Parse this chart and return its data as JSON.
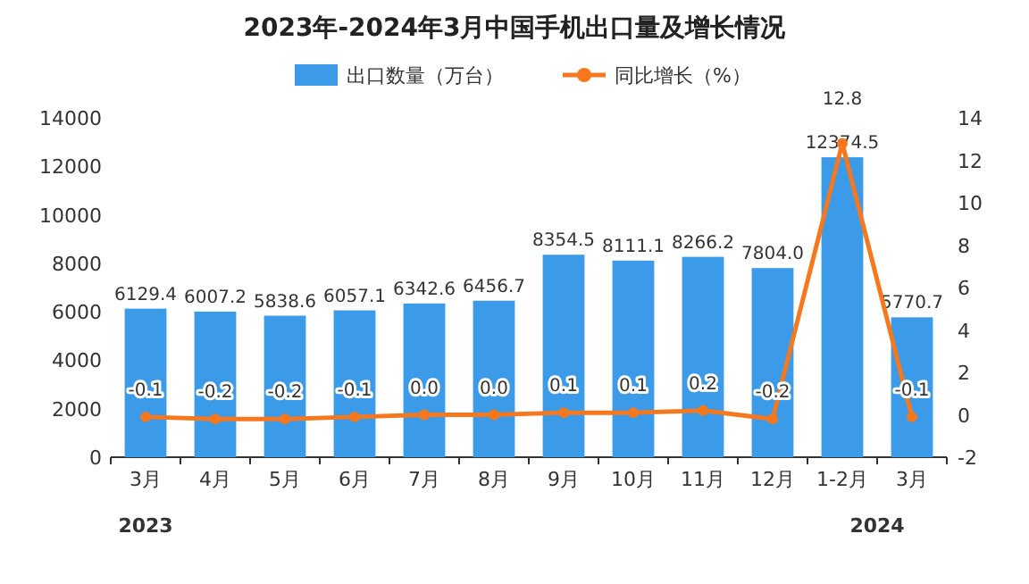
{
  "chart_data": {
    "type": "bar",
    "title": "2023年-2024年3月中国手机出口量及增长情况",
    "categories": [
      "3月",
      "4月",
      "5月",
      "6月",
      "7月",
      "8月",
      "9月",
      "10月",
      "11月",
      "12月",
      "1-2月",
      "3月"
    ],
    "series": [
      {
        "name": "出口数量（万台）",
        "color": "#3c9be8",
        "values": [
          6129.4,
          6007.2,
          5838.6,
          6057.1,
          6342.6,
          6456.7,
          8354.5,
          8111.1,
          8266.2,
          7804.0,
          12374.5,
          5770.7
        ],
        "value_labels": [
          "6129.4",
          "6007.2",
          "5838.6",
          "6057.1",
          "6342.6",
          "6456.7",
          "8354.5",
          "8111.1",
          "8266.2",
          "7804.0",
          "12374.5",
          "5770.7"
        ]
      },
      {
        "name": "同比增长（%）",
        "type": "line",
        "axis": "y2",
        "color": "#f5781e",
        "marker": "circle",
        "values": [
          -0.1,
          -0.2,
          -0.2,
          -0.1,
          0.0,
          0.0,
          0.1,
          0.1,
          0.2,
          -0.2,
          12.8,
          -0.1
        ],
        "value_labels": [
          "-0.1",
          "-0.2",
          "-0.2",
          "-0.1",
          "0.0",
          "0.0",
          "0.1",
          "0.1",
          "0.2",
          "-0.2",
          "12.8",
          "-0.1"
        ]
      }
    ],
    "ylim": [
      0,
      14000.0
    ],
    "yticks": [
      0,
      2000,
      4000,
      6000,
      8000,
      10000,
      12000,
      14000
    ],
    "y2lim": [
      -2,
      14
    ],
    "y2ticks": [
      -2,
      0,
      2,
      4,
      6,
      8,
      10,
      12,
      14
    ],
    "legend": "top",
    "annotations": [
      "2023",
      "2024"
    ]
  }
}
